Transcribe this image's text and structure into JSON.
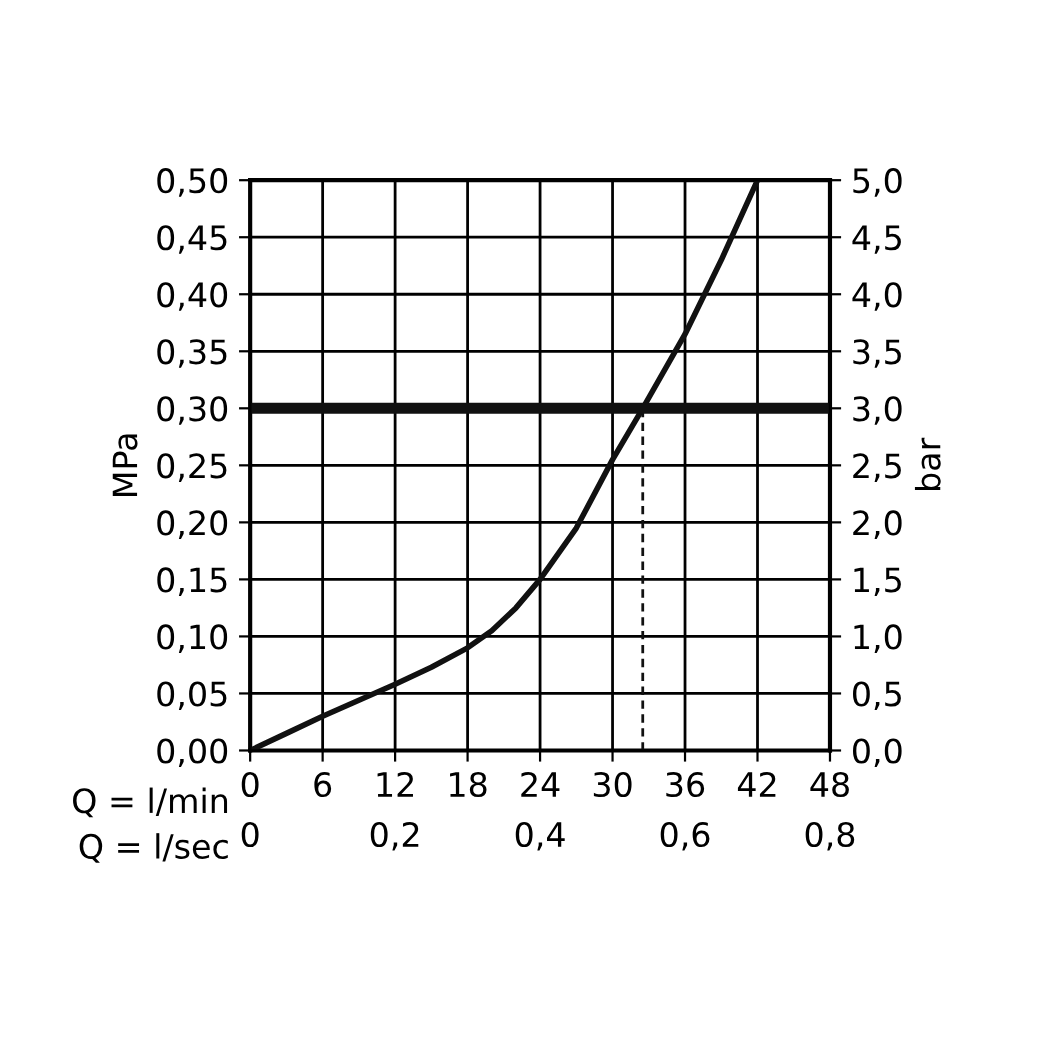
{
  "chart_data": {
    "type": "line",
    "x": [
      0,
      3,
      6,
      9,
      12,
      15,
      18,
      20,
      22,
      24,
      27,
      30,
      32.5,
      36,
      39,
      42
    ],
    "series": [
      {
        "color": "#111111",
        "values": [
          0,
          0.015,
          0.03,
          0.044,
          0.058,
          0.073,
          0.09,
          0.105,
          0.125,
          0.15,
          0.195,
          0.255,
          0.3,
          0.365,
          0.43,
          0.5
        ]
      },
      {
        "color": "#111111",
        "x": [
          32.5,
          32.5
        ],
        "values": [
          0,
          0.3
        ],
        "line_style": "dashed"
      }
    ],
    "xlabel": "Q = l/min",
    "x2label": "Q = l/sec",
    "ylabel": "MPa",
    "y2label": "bar",
    "xlim": [
      0,
      48
    ],
    "xticks": [
      0,
      6,
      12,
      18,
      24,
      30,
      36,
      42,
      48
    ],
    "x2lim": [
      0,
      0.8
    ],
    "x2ticks": [
      {
        "value": 0,
        "label": "0"
      },
      {
        "value": 0.2,
        "label": "0,2"
      },
      {
        "value": 0.4,
        "label": "0,4"
      },
      {
        "value": 0.6,
        "label": "0,6"
      },
      {
        "value": 0.8,
        "label": "0,8"
      }
    ],
    "ylim": [
      0,
      0.5
    ],
    "yticks": [
      {
        "value": 0,
        "label": "0,00"
      },
      {
        "value": 0.05,
        "label": "0,05"
      },
      {
        "value": 0.1,
        "label": "0,10"
      },
      {
        "value": 0.15,
        "label": "0,15"
      },
      {
        "value": 0.2,
        "label": "0,20"
      },
      {
        "value": 0.25,
        "label": "0,25"
      },
      {
        "value": 0.3,
        "label": "0,30"
      },
      {
        "value": 0.35,
        "label": "0,35"
      },
      {
        "value": 0.4,
        "label": "0,40"
      },
      {
        "value": 0.45,
        "label": "0,45"
      },
      {
        "value": 0.5,
        "label": "0,50"
      }
    ],
    "y2lim": [
      0,
      5
    ],
    "y2ticks": [
      {
        "value": 0,
        "label": "0,0"
      },
      {
        "value": 0.5,
        "label": "0,5"
      },
      {
        "value": 1,
        "label": "1,0"
      },
      {
        "value": 1.5,
        "label": "1,5"
      },
      {
        "value": 2,
        "label": "2,0"
      },
      {
        "value": 2.5,
        "label": "2,5"
      },
      {
        "value": 3,
        "label": "3,0"
      },
      {
        "value": 3.5,
        "label": "3,5"
      },
      {
        "value": 4,
        "label": "4,0"
      },
      {
        "value": 4.5,
        "label": "4,5"
      },
      {
        "value": 5,
        "label": "5,0"
      }
    ],
    "ref_lines": [
      {
        "axis": "y",
        "value": 0.3,
        "color": "#111111"
      }
    ],
    "grid": true,
    "legend": false
  }
}
